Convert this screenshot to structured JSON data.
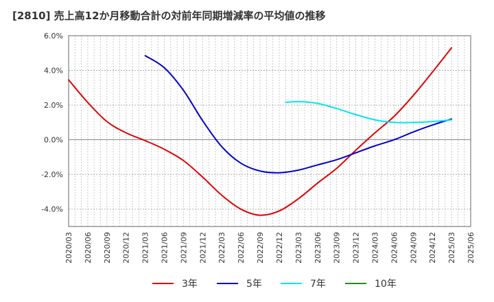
{
  "chart_data": {
    "type": "line",
    "title": "[2810]  売上高12か月移動合計の対前年同期増減率の平均値の推移",
    "xlabel": "",
    "ylabel": "",
    "ylim": [
      -5.0,
      6.0
    ],
    "yticks": [
      6.0,
      4.0,
      2.0,
      0.0,
      -2.0,
      -4.0
    ],
    "ytick_labels": [
      "6.0%",
      "4.0%",
      "2.0%",
      "0.0%",
      "-2.0%",
      "-4.0%"
    ],
    "x_ticks": [
      "2020/03",
      "2020/06",
      "2020/09",
      "2020/12",
      "2021/03",
      "2021/06",
      "2021/09",
      "2021/12",
      "2022/03",
      "2022/06",
      "2022/09",
      "2022/12",
      "2023/03",
      "2023/06",
      "2023/09",
      "2023/12",
      "2024/03",
      "2024/06",
      "2024/09",
      "2024/12",
      "2025/03",
      "2025/06"
    ],
    "grid": true,
    "legend_position": "bottom",
    "series": [
      {
        "name": "3年",
        "color": "#dd0000",
        "points": [
          [
            "2020/03",
            3.45
          ],
          [
            "2020/06",
            2.15
          ],
          [
            "2020/09",
            1.05
          ],
          [
            "2020/12",
            0.4
          ],
          [
            "2021/03",
            -0.05
          ],
          [
            "2021/06",
            -0.55
          ],
          [
            "2021/09",
            -1.2
          ],
          [
            "2021/12",
            -2.15
          ],
          [
            "2022/03",
            -3.2
          ],
          [
            "2022/06",
            -4.0
          ],
          [
            "2022/09",
            -4.35
          ],
          [
            "2022/12",
            -4.1
          ],
          [
            "2023/03",
            -3.4
          ],
          [
            "2023/06",
            -2.5
          ],
          [
            "2023/09",
            -1.65
          ],
          [
            "2023/12",
            -0.6
          ],
          [
            "2024/03",
            0.4
          ],
          [
            "2024/06",
            1.35
          ],
          [
            "2024/09",
            2.55
          ],
          [
            "2024/12",
            3.9
          ],
          [
            "2025/03",
            5.3
          ]
        ]
      },
      {
        "name": "5年",
        "color": "#0000cc",
        "points": [
          [
            "2021/03",
            4.85
          ],
          [
            "2021/06",
            4.15
          ],
          [
            "2021/09",
            2.85
          ],
          [
            "2021/12",
            1.1
          ],
          [
            "2022/03",
            -0.4
          ],
          [
            "2022/06",
            -1.35
          ],
          [
            "2022/09",
            -1.8
          ],
          [
            "2022/12",
            -1.9
          ],
          [
            "2023/03",
            -1.75
          ],
          [
            "2023/06",
            -1.45
          ],
          [
            "2023/09",
            -1.15
          ],
          [
            "2023/12",
            -0.75
          ],
          [
            "2024/03",
            -0.35
          ],
          [
            "2024/06",
            0.0
          ],
          [
            "2024/09",
            0.45
          ],
          [
            "2024/12",
            0.85
          ],
          [
            "2025/03",
            1.2
          ]
        ]
      },
      {
        "name": "7年",
        "color": "#00e5ee",
        "points": [
          [
            "2023/01",
            2.15
          ],
          [
            "2023/03",
            2.2
          ],
          [
            "2023/06",
            2.1
          ],
          [
            "2023/09",
            1.8
          ],
          [
            "2023/12",
            1.45
          ],
          [
            "2024/03",
            1.15
          ],
          [
            "2024/06",
            1.0
          ],
          [
            "2024/09",
            1.0
          ],
          [
            "2024/12",
            1.05
          ],
          [
            "2025/03",
            1.15
          ]
        ]
      },
      {
        "name": "10年",
        "color": "#228b22",
        "points": []
      }
    ]
  }
}
